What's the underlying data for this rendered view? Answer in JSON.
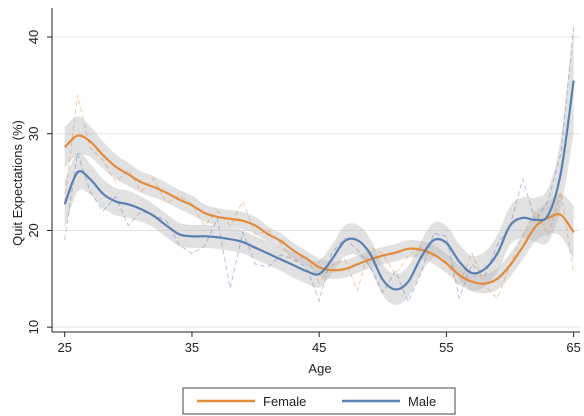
{
  "chart_data": {
    "type": "line",
    "title": "",
    "xlabel": "Age",
    "ylabel": "Quit Expectations (%)",
    "xlim": [
      24,
      65.5
    ],
    "ylim": [
      9.5,
      43
    ],
    "x_ticks": [
      25,
      35,
      45,
      55,
      65
    ],
    "x_tick_labels": [
      "25",
      "35",
      "45",
      "55",
      "65"
    ],
    "y_ticks": [
      10,
      20,
      30,
      40
    ],
    "y_tick_labels": [
      "10",
      "20",
      "30",
      "40"
    ],
    "grid": "horizontal",
    "legend_position": "bottom",
    "colors": {
      "female": "#e38b3f",
      "male": "#5b80b2",
      "band": "#bdbdbd",
      "grid": "#e3e3e3",
      "axis": "#222222"
    },
    "series": [
      {
        "name": "Female",
        "style": "smooth",
        "x": [
          25,
          26,
          27,
          28,
          29,
          30,
          31,
          32,
          33,
          34,
          35,
          36,
          37,
          38,
          39,
          40,
          41,
          42,
          43,
          44,
          45,
          46,
          47,
          48,
          49,
          50,
          51,
          52,
          53,
          54,
          55,
          56,
          57,
          58,
          59,
          60,
          61,
          62,
          63,
          64,
          65
        ],
        "values": [
          28.6,
          29.8,
          29.2,
          27.8,
          26.6,
          25.8,
          25.0,
          24.5,
          23.9,
          23.2,
          22.6,
          21.8,
          21.4,
          21.2,
          21.0,
          20.5,
          19.6,
          18.9,
          17.9,
          17.1,
          16.2,
          15.9,
          16.0,
          16.5,
          17.0,
          17.4,
          17.7,
          18.1,
          18.0,
          17.5,
          16.6,
          15.4,
          14.7,
          14.5,
          15.0,
          16.4,
          18.3,
          20.4,
          21.3,
          21.6,
          19.8
        ]
      },
      {
        "name": "Male",
        "style": "smooth",
        "x": [
          25,
          26,
          27,
          28,
          29,
          30,
          31,
          32,
          33,
          34,
          35,
          36,
          37,
          38,
          39,
          40,
          41,
          42,
          43,
          44,
          45,
          46,
          47,
          48,
          49,
          50,
          51,
          52,
          53,
          54,
          55,
          56,
          57,
          58,
          59,
          60,
          61,
          62,
          63,
          64,
          65
        ],
        "values": [
          22.7,
          26.0,
          25.3,
          23.8,
          23.0,
          22.7,
          22.2,
          21.5,
          20.5,
          19.6,
          19.4,
          19.4,
          19.3,
          19.1,
          18.8,
          18.2,
          17.6,
          17.0,
          16.4,
          15.8,
          15.5,
          17.0,
          18.9,
          19.0,
          17.6,
          14.9,
          13.9,
          14.7,
          17.2,
          19.0,
          18.7,
          16.8,
          15.6,
          16.0,
          17.6,
          20.5,
          21.3,
          21.1,
          21.6,
          26.0,
          35.5
        ]
      },
      {
        "name": "Female raw",
        "style": "dashed",
        "x": [
          25,
          26,
          27,
          28,
          29,
          30,
          31,
          32,
          33,
          34,
          35,
          36,
          37,
          38,
          39,
          40,
          41,
          42,
          43,
          44,
          45,
          46,
          47,
          48,
          49,
          50,
          51,
          52,
          53,
          54,
          55,
          56,
          57,
          58,
          59,
          60,
          61,
          62,
          63,
          64,
          65
        ],
        "values": [
          23.0,
          34.0,
          28.5,
          27.3,
          25.0,
          26.3,
          24.0,
          25.4,
          22.8,
          23.6,
          22.7,
          20.5,
          22.0,
          20.5,
          23.0,
          19.6,
          20.0,
          18.6,
          16.8,
          17.4,
          14.6,
          16.4,
          17.0,
          13.8,
          18.3,
          17.6,
          15.4,
          17.4,
          18.3,
          17.4,
          16.8,
          14.3,
          17.7,
          14.3,
          13.0,
          16.4,
          19.5,
          22.0,
          19.5,
          24.0,
          15.5
        ]
      },
      {
        "name": "Male raw",
        "style": "dashed",
        "x": [
          25,
          26,
          27,
          28,
          29,
          30,
          31,
          32,
          33,
          34,
          35,
          36,
          37,
          38,
          39,
          40,
          41,
          42,
          43,
          44,
          45,
          46,
          47,
          48,
          49,
          50,
          51,
          52,
          53,
          54,
          55,
          56,
          57,
          58,
          59,
          60,
          61,
          62,
          63,
          64,
          65
        ],
        "values": [
          19.0,
          28.0,
          24.0,
          22.0,
          23.5,
          20.5,
          22.0,
          21.6,
          21.0,
          18.5,
          17.6,
          18.4,
          21.2,
          14.0,
          19.8,
          16.5,
          16.2,
          17.5,
          17.0,
          16.2,
          12.7,
          17.7,
          19.2,
          18.0,
          16.3,
          13.6,
          15.8,
          12.6,
          15.6,
          19.7,
          19.4,
          13.0,
          16.5,
          15.3,
          18.5,
          20.5,
          25.3,
          21.0,
          23.1,
          28.0,
          41.0
        ]
      }
    ],
    "bands": [
      {
        "series": "Female",
        "lower": [
          26.5,
          27.8,
          27.6,
          26.4,
          25.3,
          24.6,
          23.9,
          23.4,
          22.9,
          22.2,
          21.6,
          20.9,
          20.5,
          20.3,
          20.1,
          19.6,
          18.8,
          18.1,
          17.1,
          16.3,
          15.3,
          15.0,
          15.1,
          15.6,
          16.1,
          16.5,
          16.8,
          17.2,
          17.1,
          16.5,
          15.6,
          14.4,
          13.7,
          13.5,
          13.9,
          15.2,
          17.0,
          18.9,
          19.6,
          19.4,
          17.0
        ],
        "upper": [
          30.7,
          31.8,
          30.8,
          29.2,
          27.9,
          27.0,
          26.1,
          25.6,
          24.9,
          24.2,
          23.6,
          22.7,
          22.3,
          22.1,
          21.9,
          21.4,
          20.4,
          19.7,
          18.7,
          17.9,
          17.1,
          16.8,
          16.9,
          17.4,
          17.9,
          18.3,
          18.6,
          19.0,
          18.9,
          18.5,
          17.6,
          16.4,
          15.7,
          15.5,
          16.1,
          17.6,
          19.6,
          21.9,
          23.0,
          23.8,
          22.6
        ]
      },
      {
        "series": "Male",
        "lower": [
          20.2,
          24.0,
          23.7,
          22.3,
          21.6,
          21.3,
          20.9,
          20.3,
          19.3,
          18.4,
          18.2,
          18.2,
          18.1,
          17.9,
          17.6,
          17.0,
          16.4,
          15.8,
          15.1,
          14.5,
          14.1,
          15.5,
          17.3,
          17.4,
          16.0,
          13.3,
          12.3,
          13.1,
          15.5,
          17.2,
          16.9,
          15.0,
          13.8,
          14.2,
          15.7,
          18.5,
          19.2,
          18.8,
          18.8,
          22.4,
          30.0
        ],
        "upper": [
          25.2,
          28.0,
          26.9,
          25.3,
          24.4,
          24.1,
          23.5,
          22.7,
          21.7,
          20.8,
          20.6,
          20.6,
          20.5,
          20.3,
          20.0,
          19.4,
          18.8,
          18.2,
          17.7,
          17.1,
          16.9,
          18.5,
          20.5,
          20.6,
          19.2,
          16.5,
          15.5,
          16.3,
          18.9,
          20.8,
          20.5,
          18.6,
          17.4,
          17.8,
          19.5,
          22.5,
          23.4,
          23.4,
          24.4,
          29.6,
          41.0
        ]
      }
    ],
    "legend": [
      {
        "label": "Female",
        "color": "#e38b3f"
      },
      {
        "label": "Male",
        "color": "#5b80b2"
      }
    ]
  }
}
